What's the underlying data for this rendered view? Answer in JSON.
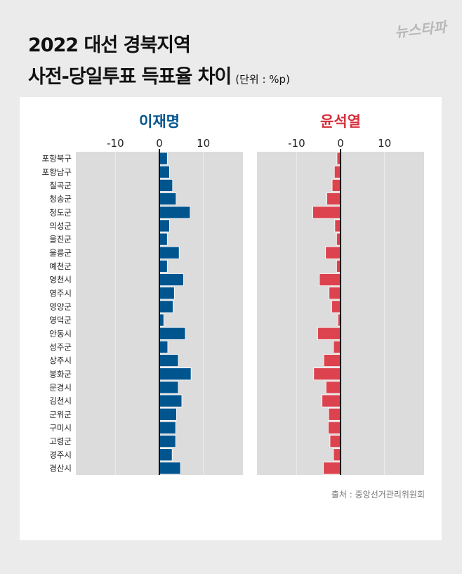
{
  "title_line1": "2022 대선 경북지역",
  "title_line2": "사전-당일투표 득표율 차이",
  "unit": "(단위 : %p)",
  "logo": "뉴스타파",
  "source": "출처 : 중앙선거관리위원회",
  "chart_data": [
    {
      "type": "bar",
      "orientation": "horizontal",
      "title": "이재명",
      "color": "#00558f",
      "title_color": "#00558f",
      "xlim": [
        -19,
        19
      ],
      "xticks": [
        -10,
        0,
        10
      ],
      "grid": true,
      "categories": [
        "포항북구",
        "포항남구",
        "칠곡군",
        "청송군",
        "청도군",
        "의성군",
        "울진군",
        "울릉군",
        "예천군",
        "영천시",
        "영주시",
        "영양군",
        "영덕군",
        "안동시",
        "성주군",
        "상주시",
        "봉화군",
        "문경시",
        "김천시",
        "군위군",
        "구미시",
        "고령군",
        "경주시",
        "경산시"
      ],
      "values": [
        1.8,
        2.3,
        3.0,
        3.8,
        7.0,
        2.3,
        1.8,
        4.5,
        1.8,
        5.5,
        3.4,
        3.1,
        1.0,
        5.9,
        1.9,
        4.3,
        7.2,
        4.3,
        5.1,
        3.9,
        3.7,
        3.7,
        2.9,
        4.8
      ]
    },
    {
      "type": "bar",
      "orientation": "horizontal",
      "title": "윤석열",
      "color": "#dc434f",
      "title_color": "#d7303d",
      "xlim": [
        -19,
        19
      ],
      "xticks": [
        -10,
        0,
        10
      ],
      "grid": true,
      "categories": [
        "포항북구",
        "포항남구",
        "칠곡군",
        "청송군",
        "청도군",
        "의성군",
        "울진군",
        "울릉군",
        "예천군",
        "영천시",
        "영주시",
        "영양군",
        "영덕군",
        "안동시",
        "성주군",
        "상주시",
        "봉화군",
        "문경시",
        "김천시",
        "군위군",
        "구미시",
        "고령군",
        "경주시",
        "경산시"
      ],
      "values": [
        -0.8,
        -1.4,
        -1.9,
        -3.1,
        -6.3,
        -1.3,
        -0.9,
        -3.4,
        -0.9,
        -4.8,
        -2.6,
        -2.0,
        -0.6,
        -5.2,
        -1.6,
        -3.8,
        -6.1,
        -3.3,
        -4.2,
        -2.7,
        -2.8,
        -2.4,
        -1.6,
        -3.9
      ]
    }
  ]
}
